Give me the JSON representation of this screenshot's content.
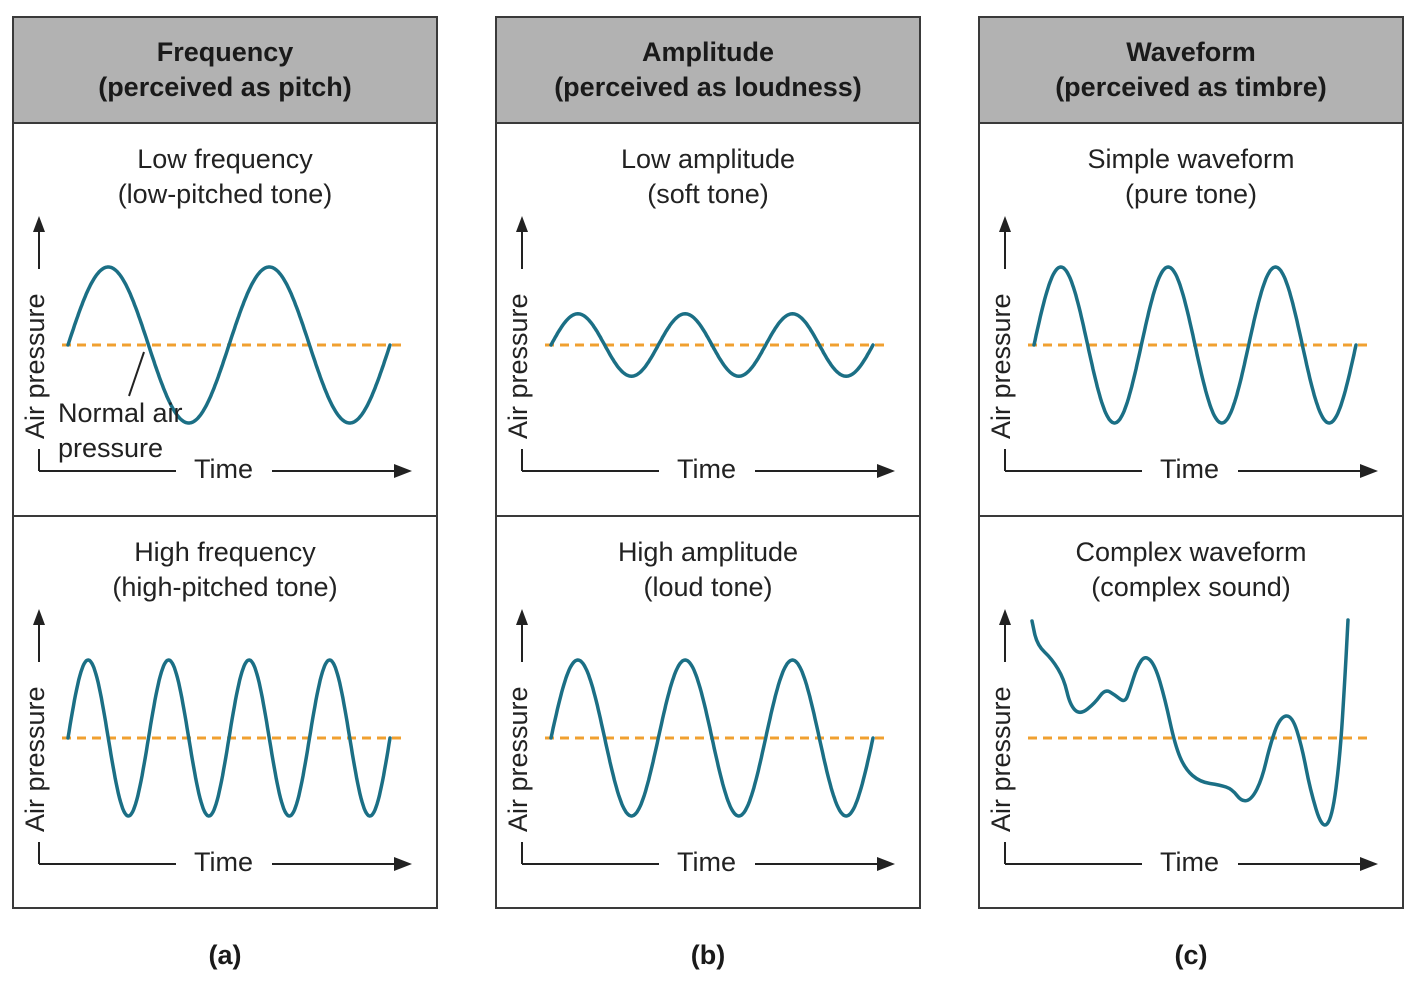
{
  "columns": [
    {
      "id": "frequency",
      "header": {
        "line1": "Frequency",
        "line2": "(perceived as pitch)"
      },
      "caption": "(a)",
      "panels": [
        {
          "title1": "Low frequency",
          "title2": "(low-pitched tone)",
          "y_label": "Air pressure",
          "x_label": "Time",
          "wave": "sine",
          "cycles": 2,
          "amplitude": 1.0,
          "annotation": {
            "line1": "Normal air",
            "line2": "pressure"
          }
        },
        {
          "title1": "High frequency",
          "title2": "(high-pitched tone)",
          "y_label": "Air pressure",
          "x_label": "Time",
          "wave": "sine",
          "cycles": 4,
          "amplitude": 1.0
        }
      ]
    },
    {
      "id": "amplitude",
      "header": {
        "line1": "Amplitude",
        "line2": "(perceived as loudness)"
      },
      "caption": "(b)",
      "panels": [
        {
          "title1": "Low amplitude",
          "title2": "(soft tone)",
          "y_label": "Air pressure",
          "x_label": "Time",
          "wave": "sine",
          "cycles": 3,
          "amplitude": 0.4
        },
        {
          "title1": "High amplitude",
          "title2": "(loud tone)",
          "y_label": "Air pressure",
          "x_label": "Time",
          "wave": "sine",
          "cycles": 3,
          "amplitude": 1.0
        }
      ]
    },
    {
      "id": "waveform",
      "header": {
        "line1": "Waveform",
        "line2": "(perceived as timbre)"
      },
      "caption": "(c)",
      "panels": [
        {
          "title1": "Simple waveform",
          "title2": "(pure tone)",
          "y_label": "Air pressure",
          "x_label": "Time",
          "wave": "sine",
          "cycles": 3,
          "amplitude": 1.0
        },
        {
          "title1": "Complex waveform",
          "title2": "(complex sound)",
          "y_label": "Air pressure",
          "x_label": "Time",
          "wave": "complex"
        }
      ]
    }
  ],
  "colors": {
    "wave": "#1b6f85",
    "baseline": "#f0a030",
    "frame": "#3a3a3a",
    "header_bg": "#b2b2b2",
    "axis": "#222222"
  }
}
